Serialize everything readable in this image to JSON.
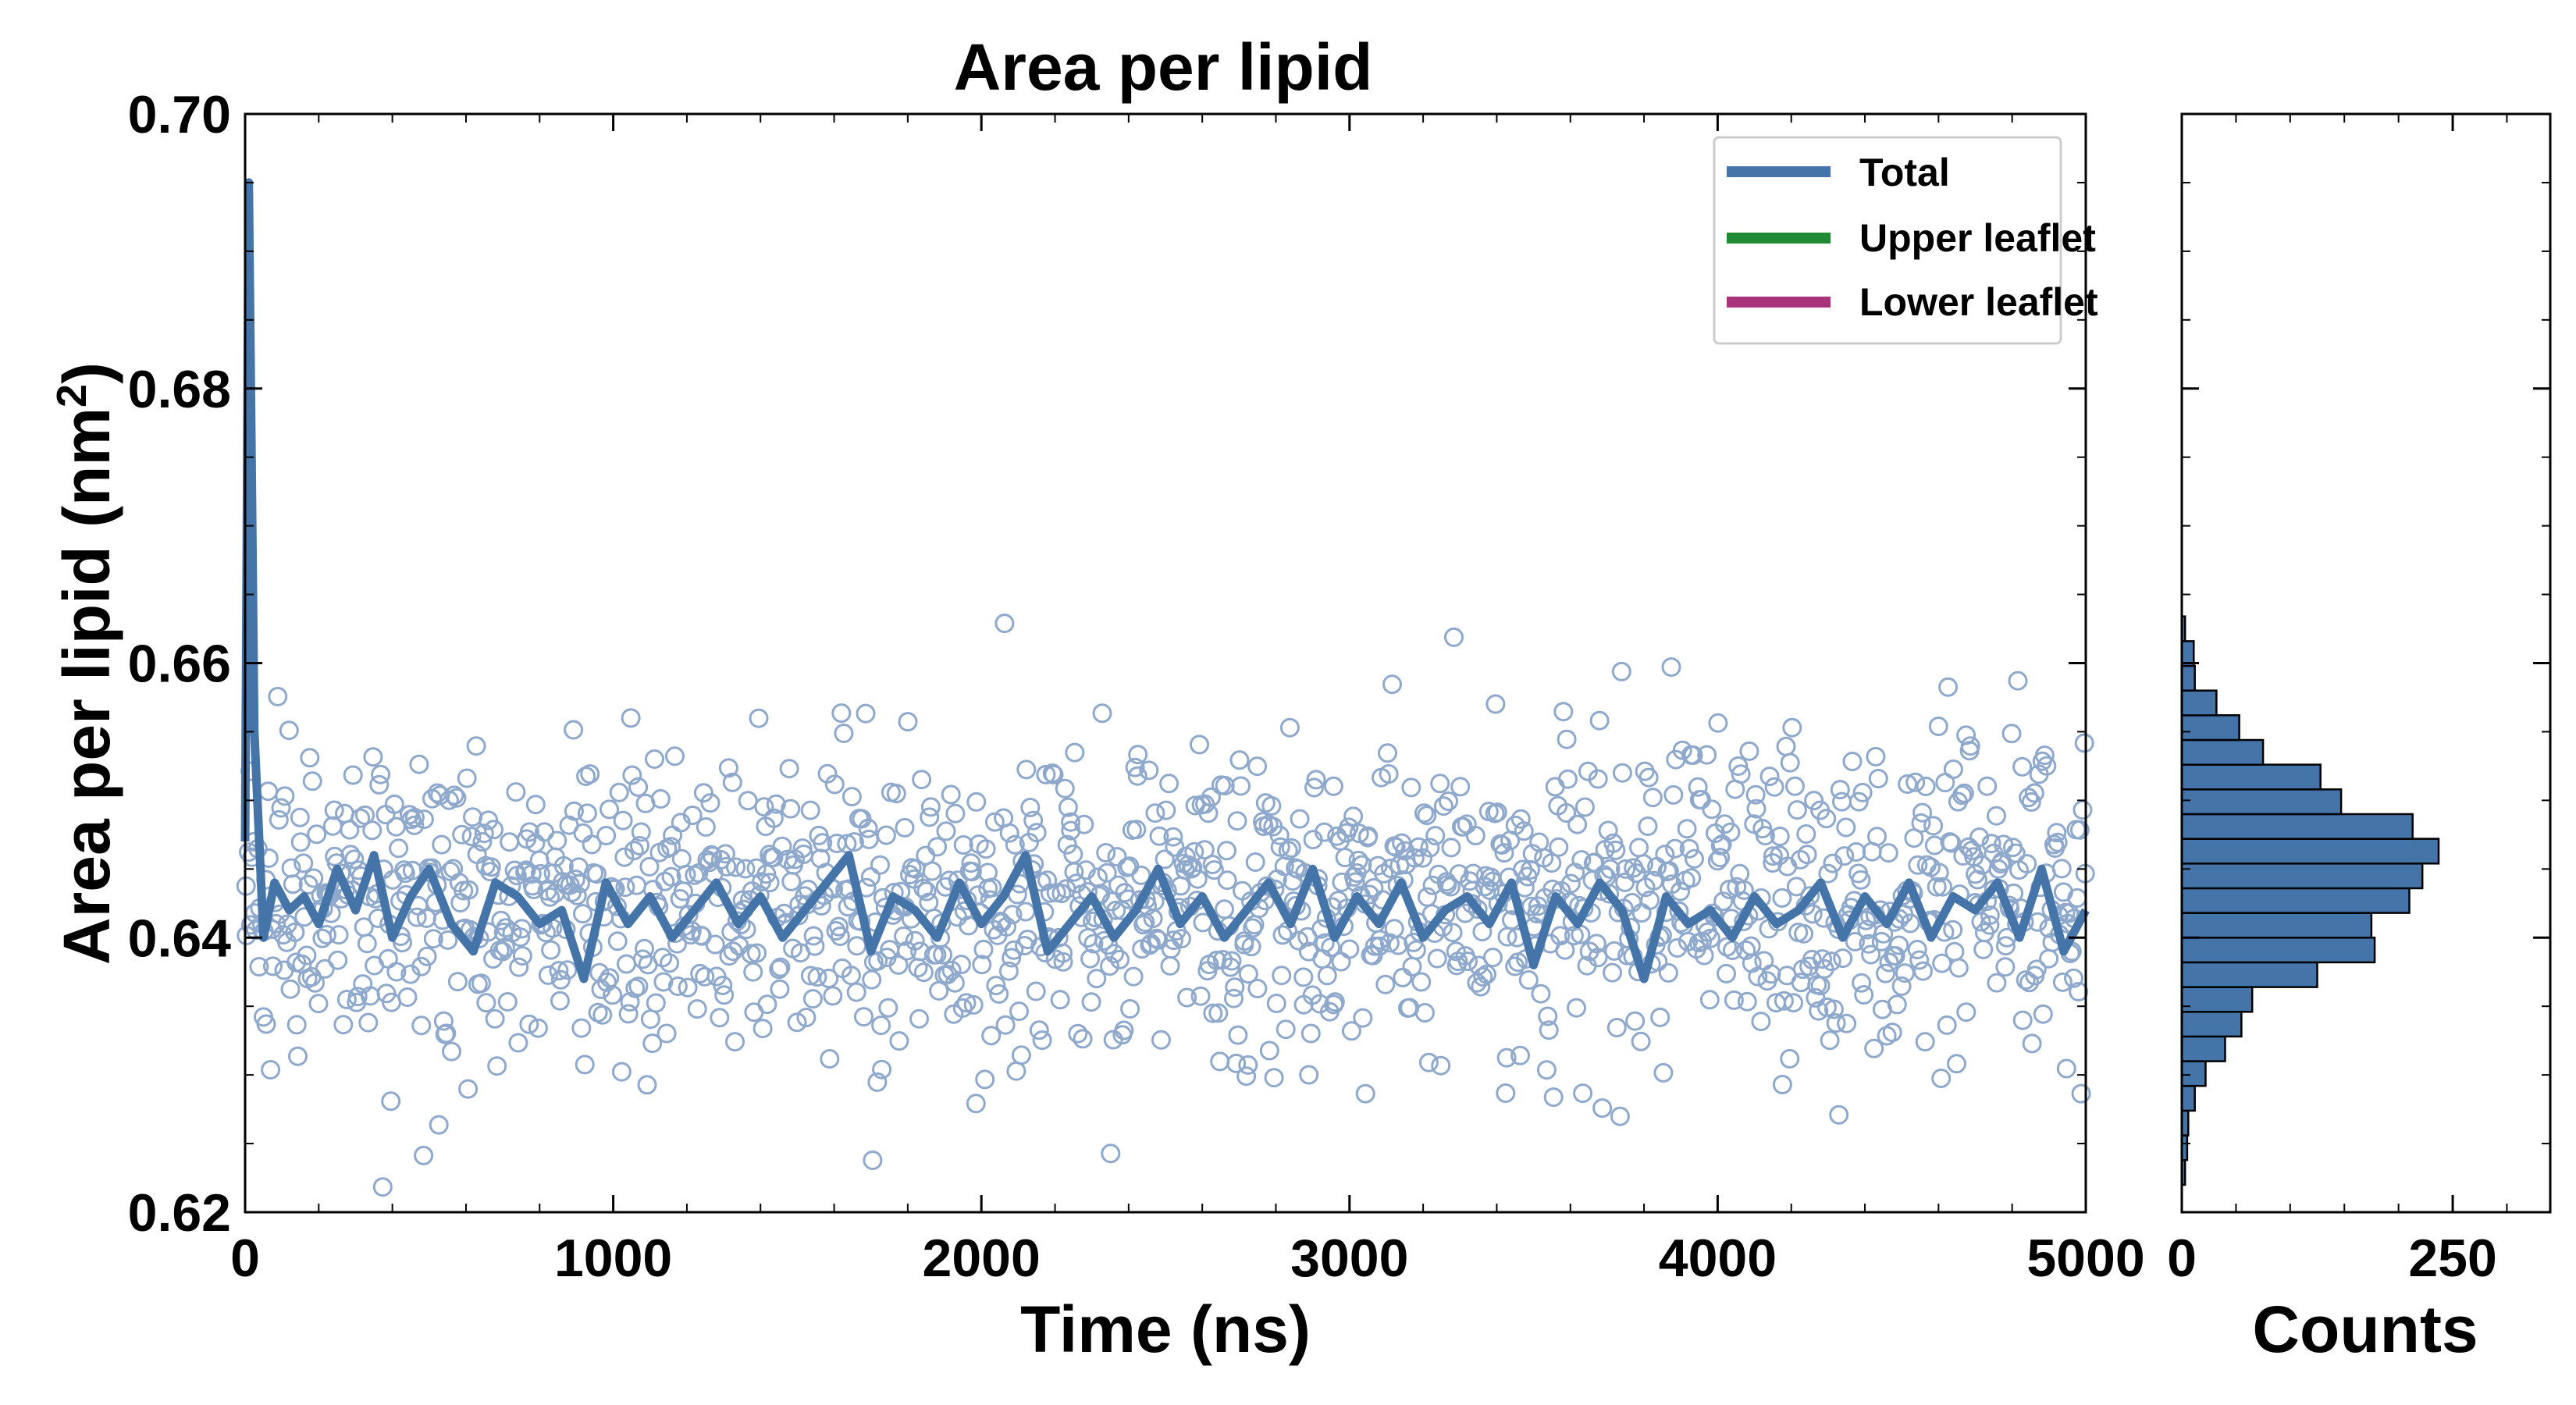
{
  "chart_data": [
    {
      "type": "scatter",
      "title": "Area per lipid",
      "xlabel": "Time (ns)",
      "ylabel": "Area per lipid (nm",
      "ylabel_superscript": "2",
      "ylabel_close": ")",
      "xlim": [
        0,
        5000
      ],
      "ylim": [
        0.62,
        0.7
      ],
      "xticks": [
        0,
        1000,
        2000,
        3000,
        4000,
        5000
      ],
      "yticks": [
        0.62,
        0.64,
        0.66,
        0.68,
        0.7
      ],
      "ytick_labels": [
        "0.62",
        "0.64",
        "0.66",
        "0.68",
        "0.70"
      ],
      "grid": false,
      "legend_position": "top-right",
      "legend": [
        {
          "name": "Total",
          "color": "#4574a8"
        },
        {
          "name": "Upper leaflet",
          "color": "#208a35"
        },
        {
          "name": "Lower leaflet",
          "color": "#a8337a"
        }
      ],
      "series": [
        {
          "name": "Total",
          "kind": "line",
          "color": "#4574a8",
          "x": [
            0,
            10,
            25,
            50,
            80,
            120,
            160,
            200,
            250,
            300,
            350,
            400,
            450,
            500,
            560,
            620,
            680,
            740,
            800,
            860,
            920,
            980,
            1040,
            1100,
            1160,
            1220,
            1280,
            1340,
            1400,
            1460,
            1520,
            1580,
            1640,
            1700,
            1760,
            1820,
            1880,
            1940,
            2000,
            2060,
            2120,
            2180,
            2240,
            2300,
            2360,
            2420,
            2480,
            2540,
            2600,
            2660,
            2720,
            2780,
            2840,
            2900,
            2960,
            3020,
            3080,
            3140,
            3200,
            3260,
            3320,
            3380,
            3440,
            3500,
            3560,
            3620,
            3680,
            3740,
            3800,
            3860,
            3920,
            3980,
            4040,
            4100,
            4160,
            4220,
            4280,
            4340,
            4400,
            4460,
            4520,
            4580,
            4640,
            4700,
            4760,
            4820,
            4880,
            4940,
            5000
          ],
          "values": [
            0.647,
            0.695,
            0.655,
            0.64,
            0.644,
            0.642,
            0.643,
            0.641,
            0.645,
            0.642,
            0.646,
            0.64,
            0.643,
            0.645,
            0.641,
            0.639,
            0.644,
            0.643,
            0.641,
            0.642,
            0.637,
            0.644,
            0.641,
            0.643,
            0.64,
            0.642,
            0.644,
            0.641,
            0.643,
            0.64,
            0.642,
            0.644,
            0.646,
            0.639,
            0.643,
            0.642,
            0.64,
            0.644,
            0.641,
            0.643,
            0.646,
            0.639,
            0.641,
            0.643,
            0.64,
            0.642,
            0.645,
            0.641,
            0.643,
            0.64,
            0.642,
            0.644,
            0.641,
            0.645,
            0.64,
            0.643,
            0.641,
            0.644,
            0.64,
            0.642,
            0.643,
            0.641,
            0.644,
            0.638,
            0.643,
            0.641,
            0.644,
            0.642,
            0.637,
            0.643,
            0.641,
            0.642,
            0.64,
            0.643,
            0.641,
            0.642,
            0.644,
            0.64,
            0.643,
            0.641,
            0.644,
            0.64,
            0.643,
            0.642,
            0.644,
            0.64,
            0.645,
            0.639,
            0.642
          ]
        },
        {
          "name": "Total",
          "kind": "scatter",
          "color": "#8fa9cc",
          "generator": {
            "count": 1400,
            "xmin": 0,
            "xmax": 5000,
            "mean": 0.6425,
            "std": 0.0058,
            "seed": 17
          }
        }
      ]
    },
    {
      "type": "bar",
      "orientation": "horizontal",
      "xlabel": "Counts",
      "xlim": [
        0,
        340
      ],
      "xticks": [
        0,
        250
      ],
      "ylim": [
        0.62,
        0.7
      ],
      "bin_width": 0.0018,
      "color": "#4574a8",
      "bins": [
        {
          "y": 0.622,
          "count": 3
        },
        {
          "y": 0.6238,
          "count": 5
        },
        {
          "y": 0.6256,
          "count": 6
        },
        {
          "y": 0.6274,
          "count": 12
        },
        {
          "y": 0.6292,
          "count": 22
        },
        {
          "y": 0.631,
          "count": 40
        },
        {
          "y": 0.6328,
          "count": 55
        },
        {
          "y": 0.6346,
          "count": 65
        },
        {
          "y": 0.6364,
          "count": 125
        },
        {
          "y": 0.6382,
          "count": 178
        },
        {
          "y": 0.64,
          "count": 175
        },
        {
          "y": 0.6418,
          "count": 210
        },
        {
          "y": 0.6436,
          "count": 222
        },
        {
          "y": 0.6454,
          "count": 237
        },
        {
          "y": 0.6472,
          "count": 213
        },
        {
          "y": 0.649,
          "count": 147
        },
        {
          "y": 0.6508,
          "count": 128
        },
        {
          "y": 0.6526,
          "count": 75
        },
        {
          "y": 0.6544,
          "count": 53
        },
        {
          "y": 0.6562,
          "count": 32
        },
        {
          "y": 0.658,
          "count": 12
        },
        {
          "y": 0.6598,
          "count": 11
        },
        {
          "y": 0.6616,
          "count": 3
        }
      ]
    }
  ]
}
